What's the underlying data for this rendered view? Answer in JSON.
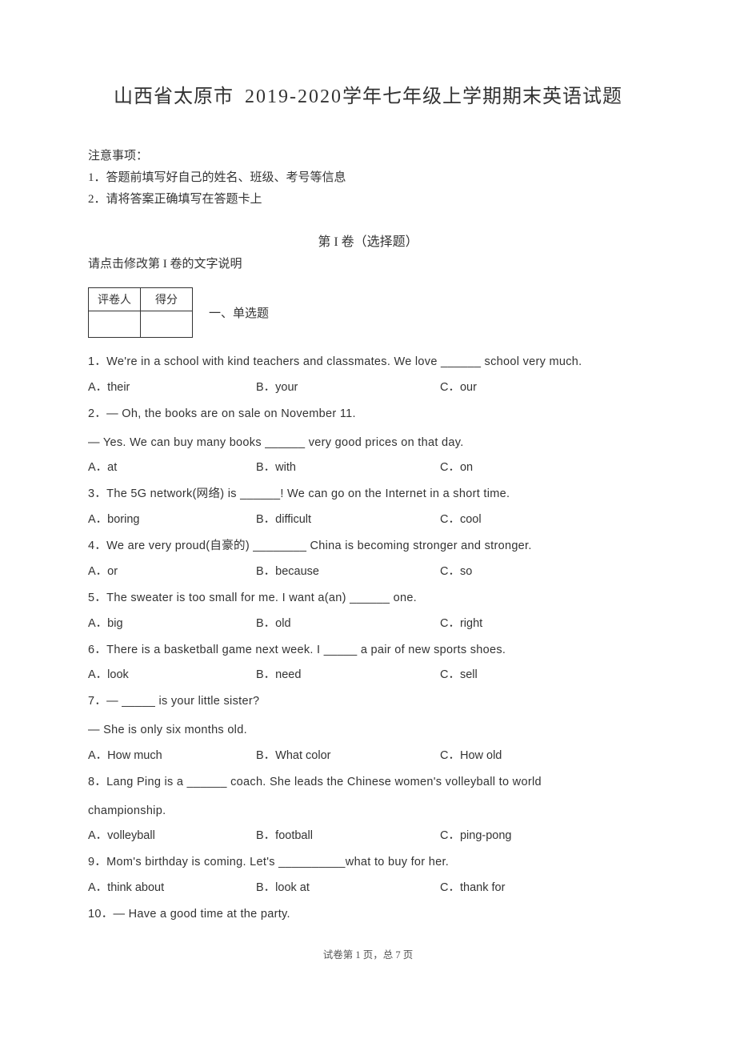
{
  "title_prefix": "山西省太原市",
  "title_year": "2019-2020",
  "title_suffix": "学年七年级上学期期末英语试题",
  "notice": {
    "head": "注意事项：",
    "items": [
      "1．答题前填写好自己的姓名、班级、考号等信息",
      "2．请将答案正确填写在答题卡上"
    ]
  },
  "section1": {
    "title": "第 I 卷（选择题）",
    "subnote": "请点击修改第   I 卷的文字说明"
  },
  "scorebox": {
    "h1": "评卷人",
    "h2": "得分"
  },
  "section_label": "一、单选题",
  "questions": [
    {
      "num": "1．",
      "text": "We're in a school with kind teachers and classmates. We love ______ school very much.",
      "opts": [
        "A．their",
        "B．your",
        "C．our"
      ]
    },
    {
      "num": "2．",
      "lines": [
        "— Oh, the books are on sale on November 11.",
        "— Yes. We can buy many books ______ very good prices on that day."
      ],
      "opts": [
        "A．at",
        "B．with",
        "C．on"
      ]
    },
    {
      "num": "3．",
      "text_pre": "The 5G network(",
      "text_cn": "网络",
      "text_post": ") is ______! We can go on the Internet in a short time.",
      "opts": [
        "A．boring",
        "B．difficult",
        "C．cool"
      ]
    },
    {
      "num": "4．",
      "text_pre": "We are very proud(",
      "text_cn": "自豪的",
      "text_post": ") ________ China is becoming stronger and stronger.",
      "opts": [
        "A．or",
        "B．because",
        "C．so"
      ]
    },
    {
      "num": "5．",
      "text": "The sweater is too small for me. I want a(an) ______ one.",
      "opts": [
        "A．big",
        "B．old",
        "C．right"
      ]
    },
    {
      "num": "6．",
      "text": "There is a basketball game next week. I _____ a pair of new sports shoes.",
      "opts": [
        "A．look",
        "B．need",
        "C．sell"
      ]
    },
    {
      "num": "7．",
      "lines": [
        "— _____ is your little sister?",
        "— She is only six months old."
      ],
      "opts": [
        "A．How much",
        "B．What color",
        "C．How old"
      ]
    },
    {
      "num": "8．",
      "lines": [
        "Lang Ping is a ______ coach. She leads the Chinese women's volleyball to world",
        "championship."
      ],
      "opts": [
        "A．volleyball",
        "B．football",
        "C．ping-pong"
      ]
    },
    {
      "num": "9．",
      "text": "Mom's birthday is coming. Let's __________what to buy for her.",
      "opts": [
        "A．think about",
        "B．look at",
        "C．thank for"
      ]
    },
    {
      "num": "10．",
      "text": "— Have a good time at the party."
    }
  ],
  "footer": "试卷第 1 页，总 7 页"
}
